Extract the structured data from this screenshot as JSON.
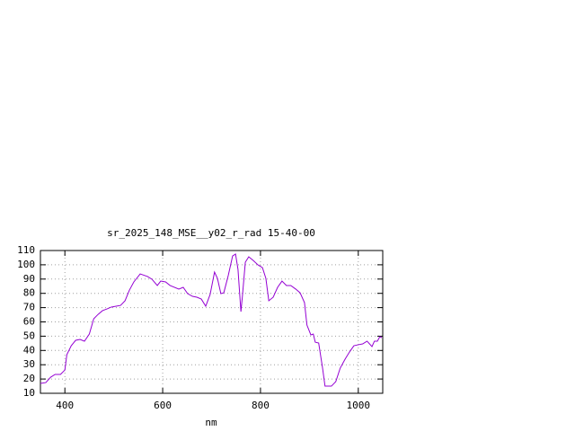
{
  "chart_data": {
    "type": "line",
    "title": "sr_2025_148_MSE__y02_r_rad 15-40-00",
    "x_label": "nm",
    "xlim": [
      350,
      1050
    ],
    "xticks": [
      400,
      600,
      800,
      1000
    ],
    "ylim": [
      10,
      110
    ],
    "yticks": [
      10,
      20,
      30,
      40,
      50,
      60,
      70,
      80,
      90,
      100,
      110
    ],
    "grid": true,
    "series": [
      {
        "color": "#9400d3",
        "x": [
          350,
          361,
          371,
          380,
          391,
          400,
          404,
          413,
          422,
          431,
          440,
          450,
          459,
          468,
          477,
          486,
          495,
          505,
          514,
          523,
          532,
          541,
          554,
          569,
          578,
          589,
          596,
          606,
          615,
          633,
          642,
          651,
          661,
          670,
          679,
          688,
          697,
          706,
          712,
          719,
          725,
          734,
          743,
          749,
          754,
          760,
          763,
          769,
          776,
          785,
          795,
          804,
          811,
          817,
          826,
          835,
          844,
          853,
          862,
          872,
          881,
          890,
          895,
          903,
          908,
          912,
          919,
          927,
          932,
          945,
          954,
          963,
          973,
          982,
          991,
          1000,
          1009,
          1018,
          1028,
          1033,
          1039,
          1044,
          1048
        ],
        "values": [
          16.9,
          17.5,
          21.3,
          23.2,
          23.2,
          26.3,
          37.0,
          43.3,
          47.1,
          47.7,
          46.5,
          51.5,
          62.2,
          65.3,
          67.9,
          69.1,
          70.4,
          71.0,
          71.6,
          74.8,
          82.3,
          88.0,
          93.6,
          91.8,
          89.9,
          85.5,
          88.6,
          88.0,
          85.5,
          83.0,
          84.2,
          79.8,
          77.9,
          77.3,
          76.0,
          71.0,
          79.2,
          94.9,
          90.5,
          79.8,
          80.4,
          92.4,
          106.2,
          107.5,
          96.8,
          67.2,
          77.9,
          101.8,
          105.6,
          103.1,
          99.9,
          98.0,
          90.5,
          74.8,
          77.3,
          84.2,
          88.6,
          85.5,
          85.5,
          83.0,
          80.4,
          73.5,
          57.8,
          50.9,
          51.5,
          45.8,
          45.2,
          27.6,
          15.0,
          15.0,
          18.2,
          27.6,
          33.9,
          38.9,
          43.3,
          44.0,
          44.6,
          46.5,
          42.7,
          46.5,
          46.5,
          49.6,
          49.0
        ]
      }
    ]
  }
}
